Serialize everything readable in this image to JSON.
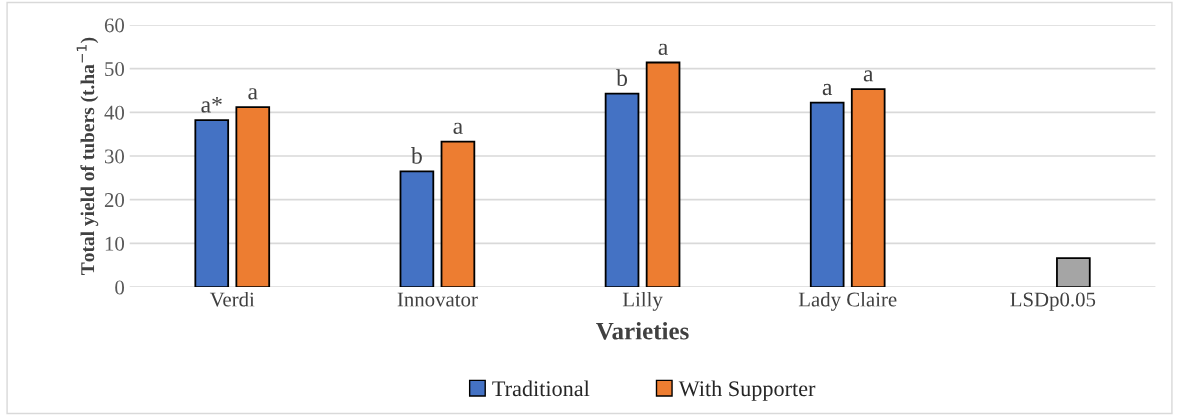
{
  "chart_data": {
    "type": "bar",
    "xlabel": "Varieties",
    "ylabel": "Total yield of tubers (t.ha$^{−1}$)",
    "categories": [
      "Verdi",
      "Innovator",
      "Lilly",
      "Lady Claire",
      "LSDp0.05"
    ],
    "series": [
      {
        "name": "Traditional",
        "color": "#4472c4",
        "values": [
          38.2,
          26.5,
          44.3,
          42.2,
          null
        ],
        "value_labels": [
          "a*",
          "b",
          "b",
          "a",
          null
        ]
      },
      {
        "name": "With Supporter",
        "color": "#ed7d31",
        "values": [
          41.2,
          33.3,
          51.4,
          45.3,
          null
        ],
        "value_labels": [
          "a",
          "a",
          "a",
          "a",
          null
        ]
      },
      {
        "color": "#a5a5a5",
        "values": [
          null,
          null,
          null,
          null,
          6.6
        ]
      }
    ],
    "ylim": [
      0,
      60
    ],
    "yticks": [
      0,
      10,
      20,
      30,
      40,
      50,
      60
    ],
    "grid": "y",
    "legend": "bottom"
  }
}
